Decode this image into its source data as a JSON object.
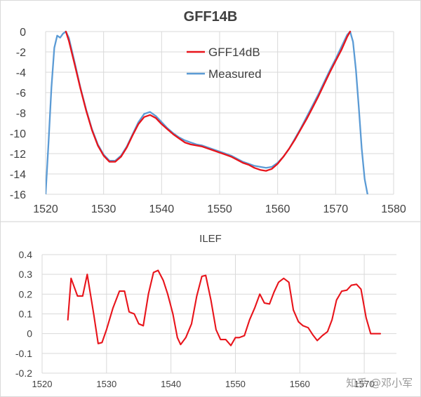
{
  "chart_data": [
    {
      "type": "line",
      "title": "GFF14B",
      "xlabel": "",
      "ylabel": "",
      "xlim": [
        1520,
        1580
      ],
      "ylim": [
        -16,
        0
      ],
      "xticks": [
        "1520",
        "1530",
        "1540",
        "1550",
        "1560",
        "1570",
        "1580"
      ],
      "yticks": [
        "0",
        "-2",
        "-4",
        "-6",
        "-8",
        "-10",
        "-12",
        "-14",
        "-16"
      ],
      "grid": true,
      "legend": "top-center",
      "series": [
        {
          "name": "GFF14dB",
          "color": "#e8141b",
          "x": [
            1523.5,
            1524,
            1525,
            1526,
            1527,
            1528,
            1529,
            1530,
            1531,
            1532,
            1533,
            1534,
            1535,
            1536,
            1537,
            1538,
            1539,
            1540,
            1541,
            1542,
            1543,
            1544,
            1545,
            1546,
            1547,
            1548,
            1549,
            1550,
            1551,
            1552,
            1553,
            1554,
            1555,
            1556,
            1557,
            1558,
            1559,
            1560,
            1561,
            1562,
            1563,
            1564,
            1565,
            1566,
            1567,
            1568,
            1569,
            1570,
            1571,
            1572,
            1572.5
          ],
          "y": [
            0.0,
            -0.9,
            -3.2,
            -5.6,
            -7.8,
            -9.7,
            -11.2,
            -12.2,
            -12.8,
            -12.8,
            -12.3,
            -11.4,
            -10.2,
            -9.1,
            -8.4,
            -8.2,
            -8.5,
            -9.1,
            -9.6,
            -10.1,
            -10.5,
            -10.9,
            -11.1,
            -11.2,
            -11.3,
            -11.5,
            -11.7,
            -11.9,
            -12.1,
            -12.3,
            -12.6,
            -12.9,
            -13.1,
            -13.4,
            -13.6,
            -13.7,
            -13.5,
            -13.0,
            -12.3,
            -11.5,
            -10.6,
            -9.6,
            -8.6,
            -7.5,
            -6.4,
            -5.2,
            -4.0,
            -2.9,
            -1.8,
            -0.5,
            0.0
          ]
        },
        {
          "name": "Measured",
          "color": "#5b9bd5",
          "x": [
            1520,
            1520.5,
            1521,
            1521.5,
            1522,
            1522.5,
            1523,
            1523.5,
            1524,
            1525,
            1526,
            1527,
            1528,
            1529,
            1530,
            1531,
            1532,
            1533,
            1534,
            1535,
            1536,
            1537,
            1538,
            1539,
            1540,
            1541,
            1542,
            1543,
            1544,
            1545,
            1546,
            1547,
            1548,
            1549,
            1550,
            1551,
            1552,
            1553,
            1554,
            1555,
            1556,
            1557,
            1558,
            1559,
            1560,
            1561,
            1562,
            1563,
            1564,
            1565,
            1566,
            1567,
            1568,
            1569,
            1570,
            1571,
            1572,
            1572.5,
            1573,
            1573.5,
            1574,
            1574.5,
            1575,
            1575.5
          ],
          "y": [
            -16.0,
            -11.0,
            -5.5,
            -1.6,
            -0.4,
            -0.6,
            -0.2,
            0.0,
            -0.6,
            -3.0,
            -5.5,
            -7.7,
            -9.6,
            -11.1,
            -12.1,
            -12.7,
            -12.7,
            -12.2,
            -11.3,
            -10.1,
            -8.9,
            -8.1,
            -7.9,
            -8.3,
            -8.9,
            -9.5,
            -10.0,
            -10.4,
            -10.7,
            -10.9,
            -11.1,
            -11.2,
            -11.4,
            -11.6,
            -11.8,
            -12.0,
            -12.2,
            -12.5,
            -12.8,
            -13.0,
            -13.2,
            -13.3,
            -13.4,
            -13.3,
            -12.9,
            -12.3,
            -11.5,
            -10.5,
            -9.5,
            -8.4,
            -7.3,
            -6.2,
            -5.0,
            -3.8,
            -2.7,
            -1.5,
            -0.3,
            0.0,
            -1.0,
            -3.8,
            -7.5,
            -11.5,
            -14.5,
            -16.0
          ]
        }
      ]
    },
    {
      "type": "line",
      "title": "ILEF",
      "xlabel": "",
      "ylabel": "",
      "xlim": [
        1520,
        1575
      ],
      "ylim": [
        -0.2,
        0.4
      ],
      "xticks": [
        "1520",
        "1530",
        "1540",
        "1550",
        "1560",
        "1570"
      ],
      "yticks": [
        "0.4",
        "0.3",
        "0.2",
        "0.1",
        "0",
        "-0.1",
        "-0.2"
      ],
      "grid": true,
      "legend": "none",
      "series": [
        {
          "name": "ILEF",
          "color": "#e8141b",
          "x": [
            1524,
            1524.5,
            1525.5,
            1526.3,
            1527,
            1528,
            1528.7,
            1529.3,
            1530,
            1531,
            1532,
            1532.8,
            1533.5,
            1534.3,
            1535,
            1535.7,
            1536.5,
            1537.3,
            1538,
            1538.8,
            1539.5,
            1540.3,
            1541,
            1541.5,
            1542.3,
            1543.2,
            1544,
            1544.8,
            1545.4,
            1546.2,
            1547,
            1547.7,
            1548.5,
            1549.3,
            1550,
            1550.6,
            1551.4,
            1552.2,
            1553,
            1553.8,
            1554.5,
            1555.3,
            1556,
            1556.7,
            1557.5,
            1558.3,
            1559,
            1559.8,
            1560.5,
            1561.3,
            1562,
            1562.7,
            1563.5,
            1564.3,
            1565,
            1565.7,
            1566.5,
            1567.3,
            1568,
            1568.8,
            1569.5,
            1570.3,
            1571,
            1571.7,
            1572.5
          ],
          "y": [
            0.07,
            0.28,
            0.19,
            0.19,
            0.3,
            0.1,
            -0.05,
            -0.045,
            0.02,
            0.13,
            0.215,
            0.215,
            0.11,
            0.1,
            0.05,
            0.04,
            0.2,
            0.31,
            0.32,
            0.27,
            0.2,
            0.1,
            -0.02,
            -0.055,
            -0.02,
            0.05,
            0.19,
            0.29,
            0.295,
            0.17,
            0.02,
            -0.03,
            -0.03,
            -0.06,
            -0.02,
            -0.02,
            -0.01,
            0.07,
            0.13,
            0.2,
            0.155,
            0.15,
            0.21,
            0.26,
            0.28,
            0.26,
            0.12,
            0.06,
            0.04,
            0.03,
            -0.005,
            -0.035,
            -0.01,
            0.01,
            0.07,
            0.17,
            0.215,
            0.22,
            0.245,
            0.25,
            0.225,
            0.08,
            0.0,
            0.0,
            0.0
          ]
        }
      ]
    }
  ],
  "watermark": "知乎 @邓小军"
}
